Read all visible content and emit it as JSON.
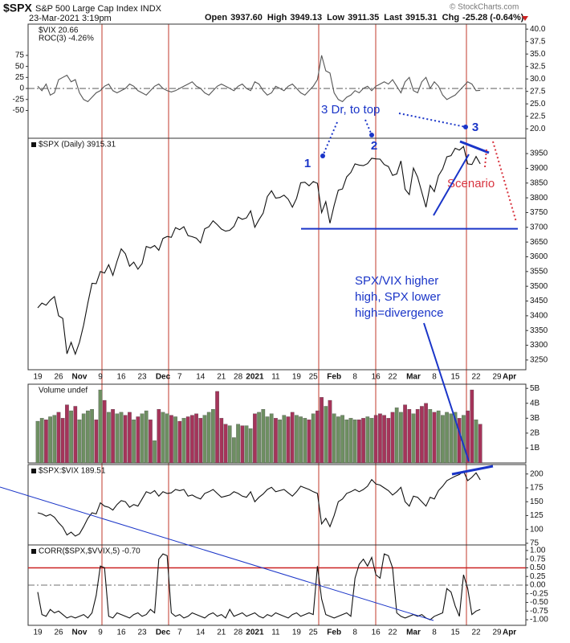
{
  "header": {
    "symbol": "$SPX",
    "name": "S&P 500 Large Cap Index",
    "exchange": "INDX",
    "date": "23-Mar-2021 3:19pm",
    "credit": "© StockCharts.com",
    "quote": [
      [
        "Open",
        "3937.60"
      ],
      [
        "High",
        "3949.13"
      ],
      [
        "Low",
        "3911.35"
      ],
      [
        "Last",
        "3915.31"
      ],
      [
        "Chg",
        "-25.28 (-0.64%)"
      ]
    ]
  },
  "chart_data": [
    {
      "type": "line",
      "legend": [
        "$VIX 20.66",
        "ROC(3) -4.26%"
      ],
      "yaxis": "left",
      "series": [
        {
          "color": "#555555",
          "values": [
            5,
            -5,
            10,
            -15,
            -10,
            20,
            25,
            30,
            15,
            20,
            -10,
            -25,
            -30,
            -20,
            -10,
            -5,
            5,
            10,
            -5,
            -10,
            -5,
            0,
            10,
            5,
            -5,
            -10,
            -15,
            -5,
            5,
            10,
            0,
            -5,
            -8,
            -5,
            0,
            5,
            10,
            15,
            5,
            0,
            -10,
            -15,
            -5,
            5,
            10,
            5,
            0,
            -5,
            5,
            10,
            0,
            -5,
            15,
            10,
            -5,
            -15,
            -10,
            5,
            0,
            -5,
            5,
            10,
            0,
            -10,
            -15,
            -5,
            5,
            20,
            75,
            40,
            35,
            -10,
            -25,
            -30,
            -20,
            -15,
            -5,
            -10,
            0,
            5,
            -5,
            5,
            10,
            15,
            10,
            20,
            5,
            -10,
            15,
            25,
            -5,
            -10,
            15,
            25,
            0,
            15,
            5,
            -15,
            -25,
            -20,
            -15,
            -5,
            5,
            15,
            10,
            -5,
            -4.26
          ]
        }
      ],
      "ylim": [
        -113,
        146
      ],
      "yticks": [
        75,
        50,
        25,
        0,
        -25,
        -50
      ],
      "y2lim": [
        18.1,
        41.0
      ],
      "y2ticks": [
        {
          "value": 40,
          "label": "40.0"
        },
        {
          "value": 37.5,
          "label": "37.5"
        },
        {
          "value": 35,
          "label": "35.0"
        },
        {
          "value": 32.5,
          "label": "32.5"
        },
        {
          "value": 30,
          "label": "30.0"
        },
        {
          "value": 27.5,
          "label": "27.5"
        },
        {
          "value": 25,
          "label": "25.0"
        },
        {
          "value": 22.5,
          "label": "22.5"
        },
        {
          "value": 20,
          "label": "20.0"
        }
      ],
      "hlines": [
        {
          "value": 0,
          "color": "#444444",
          "dash": true
        }
      ]
    },
    {
      "type": "line",
      "categories": [
        "19",
        null,
        null,
        null,
        null,
        "26",
        null,
        null,
        null,
        null,
        "Nov",
        null,
        null,
        null,
        null,
        "9",
        null,
        null,
        null,
        null,
        "16",
        null,
        null,
        null,
        null,
        "23",
        null,
        null,
        null,
        null,
        "Dec",
        null,
        null,
        null,
        "7",
        null,
        null,
        null,
        null,
        "14",
        null,
        null,
        null,
        null,
        "21",
        null,
        null,
        null,
        "28",
        null,
        null,
        null,
        "2021",
        null,
        null,
        null,
        null,
        "11",
        null,
        null,
        null,
        null,
        "19",
        null,
        null,
        null,
        "25",
        null,
        null,
        null,
        null,
        "Feb",
        null,
        null,
        null,
        null,
        "8",
        null,
        null,
        null,
        null,
        "16",
        null,
        null,
        null,
        "22",
        null,
        null,
        null,
        null,
        "Mar",
        null,
        null,
        null,
        null,
        "8",
        null,
        null,
        null,
        null,
        "15",
        null,
        null,
        null,
        null,
        "22",
        null,
        null,
        null,
        null,
        "29",
        null,
        null,
        "Apr"
      ],
      "series": [
        {
          "name": "$SPX (Daily) 3915.31",
          "color": "#111111",
          "values": [
            3427,
            3443,
            3436,
            3453,
            3465,
            3400,
            3391,
            3271,
            3310,
            3270,
            3310,
            3369,
            3443,
            3510,
            3509,
            3550,
            3545,
            3573,
            3537,
            3585,
            3627,
            3610,
            3568,
            3582,
            3558,
            3577,
            3635,
            3630,
            3638,
            3622,
            3662,
            3669,
            3666,
            3699,
            3692,
            3702,
            3672,
            3668,
            3663,
            3647,
            3695,
            3702,
            3722,
            3709,
            3694,
            3687,
            3690,
            3703,
            3735,
            3727,
            3732,
            3756,
            3700,
            3726,
            3748,
            3804,
            3824,
            3799,
            3801,
            3809,
            3795,
            3768,
            3798,
            3851,
            3853,
            3841,
            3855,
            3849,
            3750,
            3787,
            3714,
            3774,
            3826,
            3830,
            3871,
            3886,
            3915,
            3911,
            3909,
            3916,
            3934,
            3932,
            3931,
            3913,
            3906,
            3876,
            3881,
            3925,
            3829,
            3811,
            3901,
            3870,
            3819,
            3768,
            3842,
            3821,
            3875,
            3898,
            3939,
            3943,
            3968,
            3962,
            3974,
            3915,
            3913,
            3940,
            3915,
            null,
            null,
            null,
            null,
            null,
            null,
            null
          ]
        }
      ],
      "ylim": [
        3217,
        4002
      ],
      "yticks": [
        3950,
        3900,
        3850,
        3800,
        3750,
        3700,
        3650,
        3600,
        3550,
        3500,
        3450,
        3400,
        3350,
        3300,
        3250
      ],
      "yaxis": "right",
      "support_level": 3695,
      "annotations": {
        "note": "3 Dr, to top",
        "waves": [
          "1",
          "2",
          "3"
        ],
        "scenario": "Scenario",
        "divergence": [
          "SPX/VIX higher",
          "high, SPX lower",
          "high=divergence"
        ]
      }
    },
    {
      "type": "bar",
      "title": "Volume undef",
      "up_color": "#6e8f62",
      "down_color": "#a5345a",
      "yaxis": "right",
      "series": [
        {
          "values": [
            2.8,
            3.0,
            2.9,
            3.1,
            3.2,
            3.4,
            3.0,
            3.9,
            3.5,
            3.8,
            2.9,
            3.3,
            3.5,
            3.6,
            2.9,
            4.9,
            4.2,
            3.4,
            3.6,
            3.3,
            3.4,
            3.2,
            3.4,
            2.9,
            3.1,
            3.3,
            3.5,
            2.9,
            1.5,
            3.6,
            3.4,
            3.3,
            3.2,
            3.1,
            2.8,
            3.0,
            3.1,
            3.2,
            3.3,
            3.0,
            3.2,
            3.4,
            3.6,
            4.8,
            3.0,
            2.6,
            2.5,
            1.7,
            2.6,
            2.5,
            2.5,
            2.3,
            3.3,
            3.4,
            3.6,
            3.1,
            3.3,
            3.0,
            2.9,
            3.2,
            3.1,
            3.4,
            3.2,
            3.1,
            3.0,
            2.9,
            3.3,
            3.5,
            4.4,
            3.8,
            4.2,
            3.3,
            3.1,
            3.2,
            2.9,
            3.0,
            2.9,
            2.9,
            3.0,
            3.1,
            3.0,
            3.2,
            3.3,
            3.2,
            3.0,
            3.4,
            3.7,
            3.4,
            3.9,
            3.6,
            3.3,
            3.6,
            3.8,
            4.0,
            3.6,
            3.4,
            3.5,
            3.2,
            3.4,
            3.3,
            3.4,
            3.0,
            3.2,
            3.5,
            4.9,
            2.9,
            2.6
          ]
        }
      ],
      "ylim": [
        0,
        5.28
      ],
      "yticks": [
        {
          "value": 5,
          "label": "5B"
        },
        {
          "value": 4,
          "label": "4B"
        },
        {
          "value": 3,
          "label": "3B"
        },
        {
          "value": 2,
          "label": "2B"
        },
        {
          "value": 1,
          "label": "1B"
        }
      ]
    },
    {
      "type": "line",
      "yaxis": "right",
      "series": [
        {
          "name": "$SPX:$VIX 189.51",
          "color": "#111111",
          "values": [
            130,
            128,
            124,
            127,
            122,
            112,
            104,
            90,
            95,
            88,
            92,
            105,
            120,
            130,
            128,
            148,
            142,
            140,
            135,
            145,
            152,
            150,
            140,
            145,
            142,
            155,
            168,
            165,
            170,
            160,
            168,
            165,
            166,
            172,
            170,
            172,
            160,
            162,
            158,
            155,
            165,
            168,
            172,
            165,
            158,
            160,
            162,
            168,
            165,
            160,
            158,
            168,
            150,
            158,
            164,
            172,
            176,
            168,
            170,
            172,
            166,
            160,
            168,
            178,
            175,
            172,
            168,
            165,
            110,
            120,
            105,
            125,
            150,
            155,
            165,
            168,
            172,
            168,
            172,
            178,
            190,
            182,
            180,
            175,
            170,
            162,
            168,
            176,
            150,
            142,
            160,
            158,
            150,
            142,
            158,
            155,
            170,
            178,
            188,
            192,
            196,
            199,
            205,
            188,
            194,
            202,
            189.51
          ]
        }
      ],
      "ylim": [
        72,
        217
      ],
      "yticks": [
        200,
        175,
        150,
        125,
        100,
        75
      ]
    },
    {
      "type": "line",
      "yaxis": "right",
      "series": [
        {
          "name": "CORR($SPX,$VVIX,5) -0.70",
          "color": "#111111",
          "values": [
            -0.2,
            -0.85,
            -0.9,
            -0.7,
            -0.8,
            -0.75,
            -0.85,
            -0.95,
            -0.9,
            -0.95,
            -0.9,
            -0.85,
            -0.95,
            -0.8,
            -0.3,
            0.55,
            0.5,
            -0.9,
            -0.95,
            -0.8,
            -0.85,
            -0.9,
            -0.95,
            -0.85,
            -0.8,
            -0.9,
            -0.85,
            -0.7,
            -0.8,
            0.75,
            0.9,
            0.85,
            -0.8,
            -0.9,
            -0.85,
            -0.95,
            -0.9,
            -0.8,
            -0.85,
            -0.9,
            -0.95,
            -0.85,
            -0.8,
            -0.9,
            -0.85,
            -0.95,
            -0.7,
            -0.9,
            -0.85,
            -0.8,
            -0.9,
            -0.85,
            -0.8,
            -0.9,
            -0.95,
            -0.85,
            -0.9,
            -0.8,
            -0.85,
            -0.9,
            -0.95,
            -0.85,
            -0.8,
            -0.9,
            -0.85,
            -0.8,
            -0.85,
            0.55,
            -0.4,
            -0.85,
            -0.9,
            -0.95,
            -0.9,
            -0.85,
            -0.8,
            -0.9,
            0.2,
            0.6,
            0.75,
            0.55,
            0.8,
            0.3,
            0.2,
            0.9,
            0.85,
            0.5,
            -0.8,
            -0.9,
            -0.95,
            -0.9,
            -0.85,
            -0.9,
            -0.85,
            -0.95,
            -1.0,
            -0.9,
            -0.85,
            -0.8,
            -0.1,
            -0.2,
            -0.6,
            -0.9,
            0.3,
            -0.1,
            -0.85,
            -0.75,
            -0.7
          ]
        }
      ],
      "ylim": [
        -1.16,
        1.16
      ],
      "yticks": [
        {
          "value": 1,
          "label": "1.00"
        },
        {
          "value": 0.75,
          "label": "0.75"
        },
        {
          "value": 0.5,
          "label": "0.50"
        },
        {
          "value": 0.25,
          "label": "0.25"
        },
        {
          "value": 0,
          "label": "0.00"
        },
        {
          "value": -0.25,
          "label": "-0.25"
        },
        {
          "value": -0.5,
          "label": "-0.50"
        },
        {
          "value": -0.75,
          "label": "-0.75"
        },
        {
          "value": -1,
          "label": "-1.00"
        }
      ],
      "hlines": [
        {
          "value": 0.5,
          "color": "#cc2222",
          "dash": false
        },
        {
          "value": 0,
          "color": "#444444",
          "dash": true
        }
      ]
    }
  ]
}
